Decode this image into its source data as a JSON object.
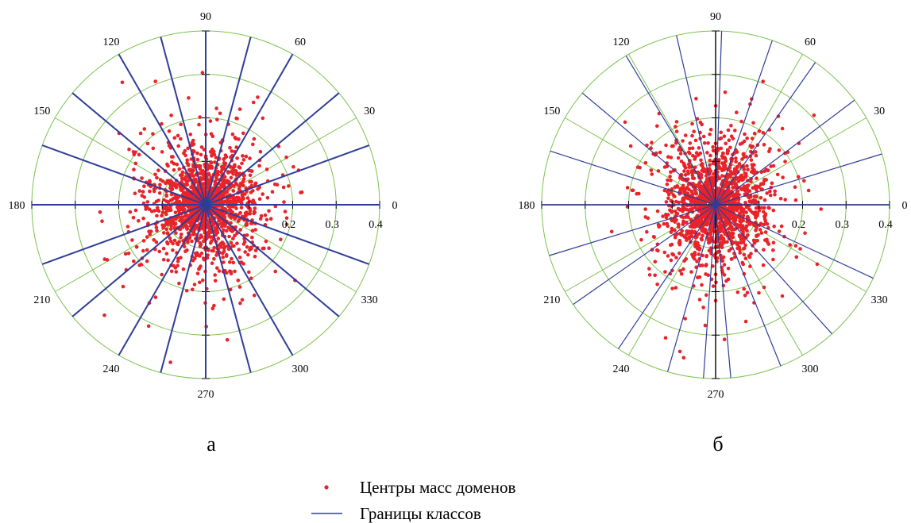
{
  "figure": {
    "panel_labels": [
      "а",
      "б"
    ],
    "legend": {
      "points_label": "Центры масс доменов",
      "lines_label": "Границы классов"
    }
  },
  "colors": {
    "points": "#e8232a",
    "boundaries": "#2e3d98",
    "grid": "#7cc24d",
    "axis": "#000000"
  },
  "chart_data": [
    {
      "type": "scatter",
      "coordinate_system": "polar",
      "panel": "а",
      "angular_ticks": [
        "0",
        "30",
        "60",
        "90",
        "120",
        "150",
        "180",
        "210",
        "240",
        "270",
        "300",
        "330"
      ],
      "radial_ticks": [
        "0.2",
        "0.3",
        "0.4"
      ],
      "rlim": [
        0,
        0.4
      ],
      "grid": true,
      "series": [
        {
          "name": "Центры масс доменов",
          "kind": "points",
          "approx_count": 1800,
          "distribution": "dense cluster around origin, most radii below 0.3, max about 0.38"
        },
        {
          "name": "Границы классов",
          "kind": "radial_lines",
          "angles_deg": [
            0,
            20,
            40,
            60,
            75,
            90,
            105,
            120,
            140,
            160,
            180,
            200,
            220,
            240,
            255,
            270,
            285,
            300,
            320,
            340
          ]
        }
      ]
    },
    {
      "type": "scatter",
      "coordinate_system": "polar",
      "panel": "б",
      "angular_ticks": [
        "0",
        "30",
        "60",
        "90",
        "120",
        "150",
        "180",
        "210",
        "240",
        "270",
        "300",
        "330"
      ],
      "radial_ticks": [
        "0.2",
        "0.3",
        "0.4"
      ],
      "rlim": [
        0,
        0.4
      ],
      "grid": true,
      "series": [
        {
          "name": "Центры масс доменов",
          "kind": "points",
          "approx_count": 1800,
          "distribution": "dense cluster around origin, most radii below 0.3, max about 0.38"
        },
        {
          "name": "Границы классов",
          "kind": "radial_lines",
          "angles_deg": [
            0,
            17,
            37,
            55,
            71,
            88,
            103,
            121,
            140,
            162,
            180,
            197,
            215,
            236,
            254,
            266,
            275,
            292,
            312,
            335
          ]
        }
      ]
    }
  ]
}
